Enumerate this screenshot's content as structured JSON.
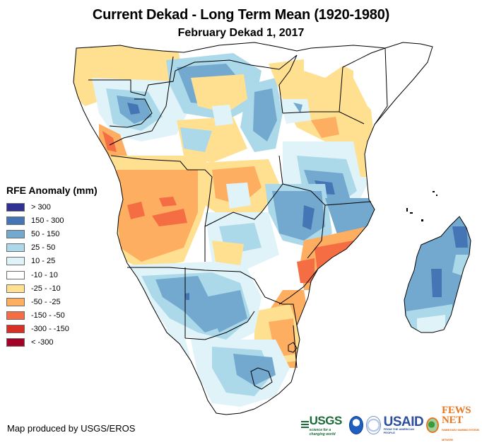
{
  "header": {
    "title": "Current Dekad - Long Term Mean (1920-1980)",
    "subtitle": "February Dekad 1, 2017"
  },
  "legend": {
    "title": "RFE Anomaly (mm)",
    "items": [
      {
        "label": "> 300",
        "color": "#2e3192"
      },
      {
        "label": "150 - 300",
        "color": "#4575b4"
      },
      {
        "label": "50 - 150",
        "color": "#74a9cf"
      },
      {
        "label": "25 - 50",
        "color": "#abd9e9"
      },
      {
        "label": "10 - 25",
        "color": "#e0f3f8"
      },
      {
        "label": "-10 - 10",
        "color": "#ffffff"
      },
      {
        "label": "-25 - -10",
        "color": "#fee090"
      },
      {
        "label": "-50 - -25",
        "color": "#fdae61"
      },
      {
        "label": "-150 - -50",
        "color": "#f46d43"
      },
      {
        "label": "-300 - -150",
        "color": "#d73027"
      },
      {
        "label": "< -300",
        "color": "#a50026"
      }
    ]
  },
  "footer": {
    "credit": "Map produced by USGS/EROS",
    "logos": {
      "usgs": "USGS",
      "usgs_tagline": "science for a changing world",
      "usaid": "USAID",
      "usaid_tagline": "FROM THE AMERICAN PEOPLE",
      "fews": "FEWS NET",
      "fews_tagline": "FAMINE EARLY WARNING SYSTEMS NETWORK"
    }
  },
  "map": {
    "region": "Southern and Central Africa",
    "variable": "Rainfall Estimate (RFE) anomaly",
    "colors": {
      "border": "#000000",
      "ocean": "#ffffff"
    }
  }
}
